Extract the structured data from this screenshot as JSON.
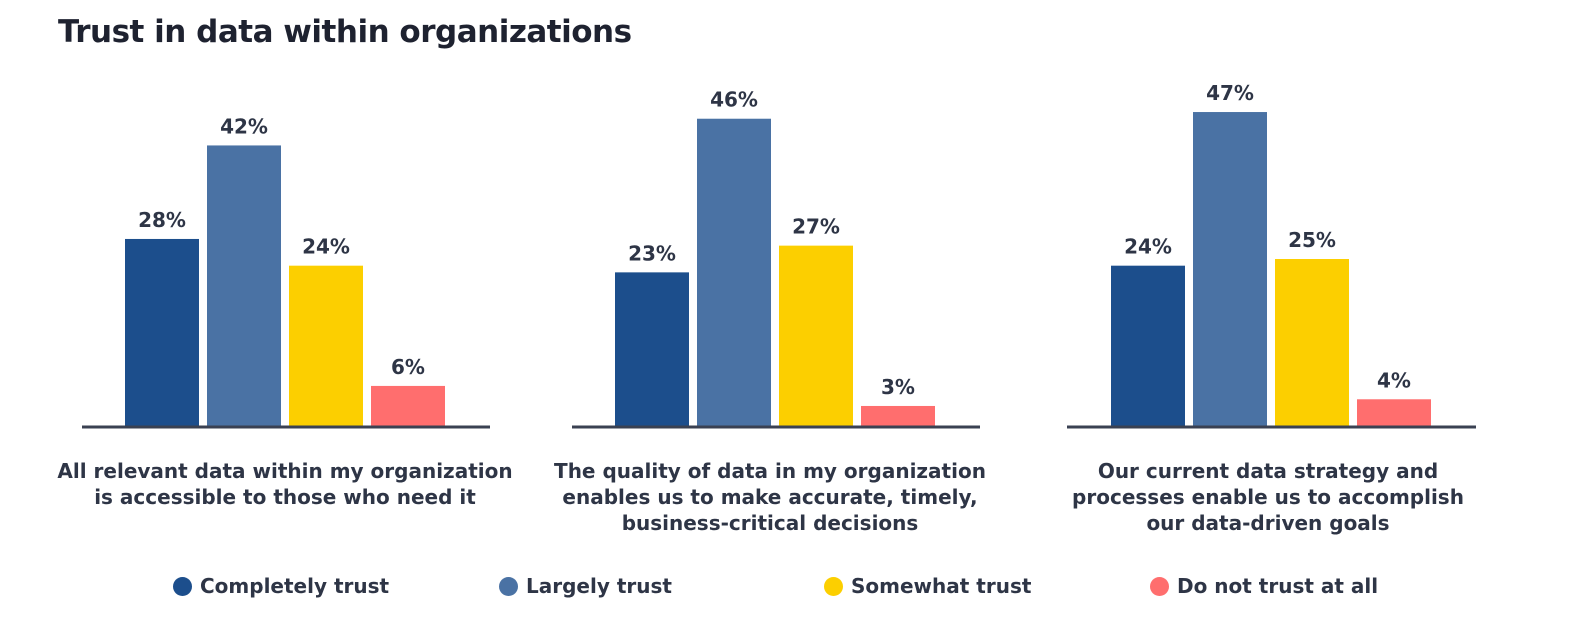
{
  "title": "Trust in data within organizations",
  "colors": {
    "completely": "#1c4e8c",
    "largely": "#4a72a4",
    "somewhat": "#fccf00",
    "not_at_all": "#ff6e6e",
    "axis": "#3a4152",
    "text": "#2e3546"
  },
  "chart_data": {
    "type": "bar",
    "title": "Trust in data within organizations",
    "xlabel": "",
    "ylabel": "",
    "categories": [
      "All relevant data within my organization\nis accessible to those who need it",
      "The quality of data in my organization\nenables us to make accurate, timely,\nbusiness-critical decisions",
      "Our current data strategy and\nprocesses enable us to accomplish\nour data-driven goals"
    ],
    "series": [
      {
        "name": "Completely trust",
        "values": [
          28,
          23,
          24
        ]
      },
      {
        "name": "Largely trust",
        "values": [
          42,
          46,
          47
        ]
      },
      {
        "name": "Somewhat trust",
        "values": [
          24,
          27,
          25
        ]
      },
      {
        "name": "Do not trust at all",
        "values": [
          6,
          3,
          4
        ]
      }
    ],
    "value_suffix": "%",
    "ylim": [
      0,
      50
    ],
    "grid": false,
    "legend_position": "bottom"
  },
  "legend": [
    {
      "label": "Completely trust",
      "color": "#1c4e8c"
    },
    {
      "label": "Largely trust",
      "color": "#4a72a4"
    },
    {
      "label": "Somewhat trust",
      "color": "#fccf00"
    },
    {
      "label": "Do not trust at all",
      "color": "#ff6e6e"
    }
  ]
}
